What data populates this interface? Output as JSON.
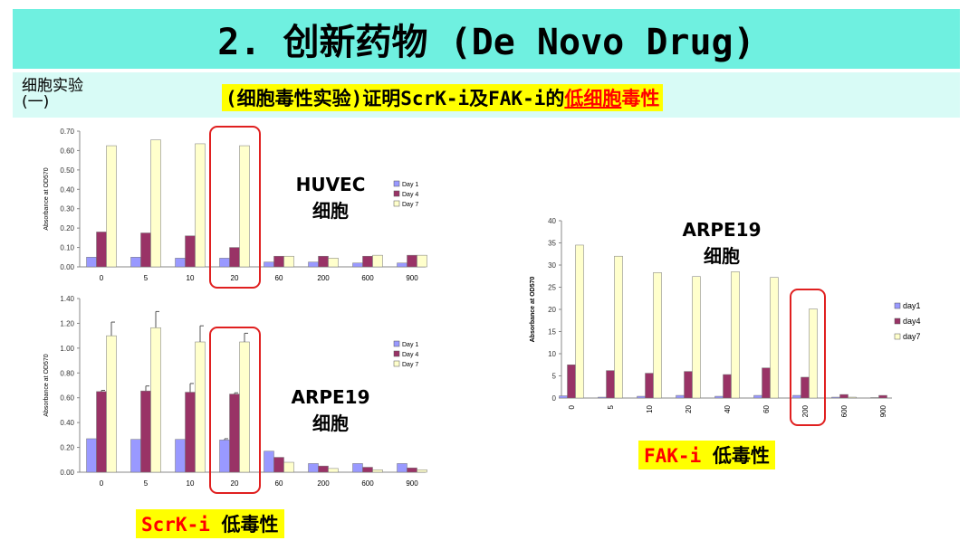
{
  "slide": {
    "title": "2. 创新药物 (De Novo Drug)",
    "section": [
      "细胞实验",
      "(一)"
    ],
    "headline": {
      "part1": "(细胞毒性实验)证明ScrK-i及FAK-i的",
      "part2": "低细胞",
      "part3": "毒性"
    },
    "scrk_tag": {
      "name": "ScrK-i",
      "text": " 低毒性"
    },
    "fak_tag": {
      "name": "FAK-i",
      "text": " 低毒性"
    },
    "annotations": {
      "huvec": [
        "HUVEC",
        "细胞"
      ],
      "arpe_left": [
        "ARPE19",
        "细胞"
      ],
      "arpe_right": [
        "ARPE19",
        "细胞"
      ]
    }
  },
  "colors": {
    "day1": "#9999ff",
    "day4": "#993366",
    "day7": "#ffffcc",
    "highlight_box": "#e02020",
    "title_bar": "#6ff0e0",
    "tag": "#ffff00"
  },
  "chart_data": [
    {
      "type": "bar",
      "ylabel": "Absorbance at OD570",
      "ylim": [
        0,
        0.7
      ],
      "yticks": [
        "0.00",
        "0.10",
        "0.20",
        "0.30",
        "0.40",
        "0.50",
        "0.60",
        "0.70"
      ],
      "categories": [
        "0",
        "5",
        "10",
        "20",
        "60",
        "200",
        "600",
        "900"
      ],
      "legend_position": "right",
      "highlighted_category": "20",
      "series": [
        {
          "name": "Day 1",
          "values": [
            0.05,
            0.05,
            0.045,
            0.045,
            0.025,
            0.025,
            0.02,
            0.02
          ]
        },
        {
          "name": "Day 4",
          "values": [
            0.18,
            0.175,
            0.16,
            0.1,
            0.055,
            0.055,
            0.055,
            0.06
          ]
        },
        {
          "name": "Day 7",
          "values": [
            0.625,
            0.655,
            0.635,
            0.625,
            0.055,
            0.045,
            0.06,
            0.06
          ]
        }
      ]
    },
    {
      "type": "bar",
      "ylabel": "Absorbance at OD570",
      "ylim": [
        0,
        1.4
      ],
      "yticks": [
        "0.00",
        "0.20",
        "0.40",
        "0.60",
        "0.80",
        "1.00",
        "1.20",
        "1.40"
      ],
      "categories": [
        "0",
        "5",
        "10",
        "20",
        "60",
        "200",
        "600",
        "900"
      ],
      "legend_position": "right",
      "highlighted_category": "20",
      "series": [
        {
          "name": "Day 1",
          "values": [
            0.27,
            0.265,
            0.265,
            0.26,
            0.17,
            0.07,
            0.07,
            0.07
          ],
          "errors": [
            0,
            0,
            0,
            0.01,
            0,
            0,
            0,
            0
          ]
        },
        {
          "name": "Day 4",
          "values": [
            0.65,
            0.655,
            0.645,
            0.63,
            0.12,
            0.05,
            0.04,
            0.035
          ],
          "errors": [
            0.01,
            0.04,
            0.07,
            0.01,
            0,
            0,
            0,
            0
          ]
        },
        {
          "name": "Day 7",
          "values": [
            1.1,
            1.165,
            1.05,
            1.05,
            0.08,
            0.03,
            0.02,
            0.02
          ],
          "errors": [
            0.11,
            0.13,
            0.13,
            0.07,
            0,
            0,
            0,
            0
          ]
        }
      ]
    },
    {
      "type": "bar",
      "ylabel": "Absorbance at OD570",
      "ylim": [
        0,
        40
      ],
      "yticks": [
        "0",
        "5",
        "10",
        "15",
        "20",
        "25",
        "30",
        "35",
        "40"
      ],
      "categories": [
        "0",
        "5",
        "10",
        "20",
        "40",
        "60",
        "200",
        "600",
        "900"
      ],
      "legend_position": "right",
      "highlighted_category": "200",
      "series": [
        {
          "name": "day1",
          "values": [
            0.5,
            0.2,
            0.4,
            0.6,
            0.4,
            0.6,
            0.6,
            0.2,
            0.1
          ]
        },
        {
          "name": "day4",
          "values": [
            7.5,
            6.2,
            5.6,
            6.0,
            5.3,
            6.8,
            4.7,
            0.8,
            0.6
          ]
        },
        {
          "name": "day7",
          "values": [
            34.5,
            32,
            28.3,
            27.4,
            28.5,
            27.2,
            20.1,
            0.2,
            0
          ]
        }
      ]
    }
  ]
}
